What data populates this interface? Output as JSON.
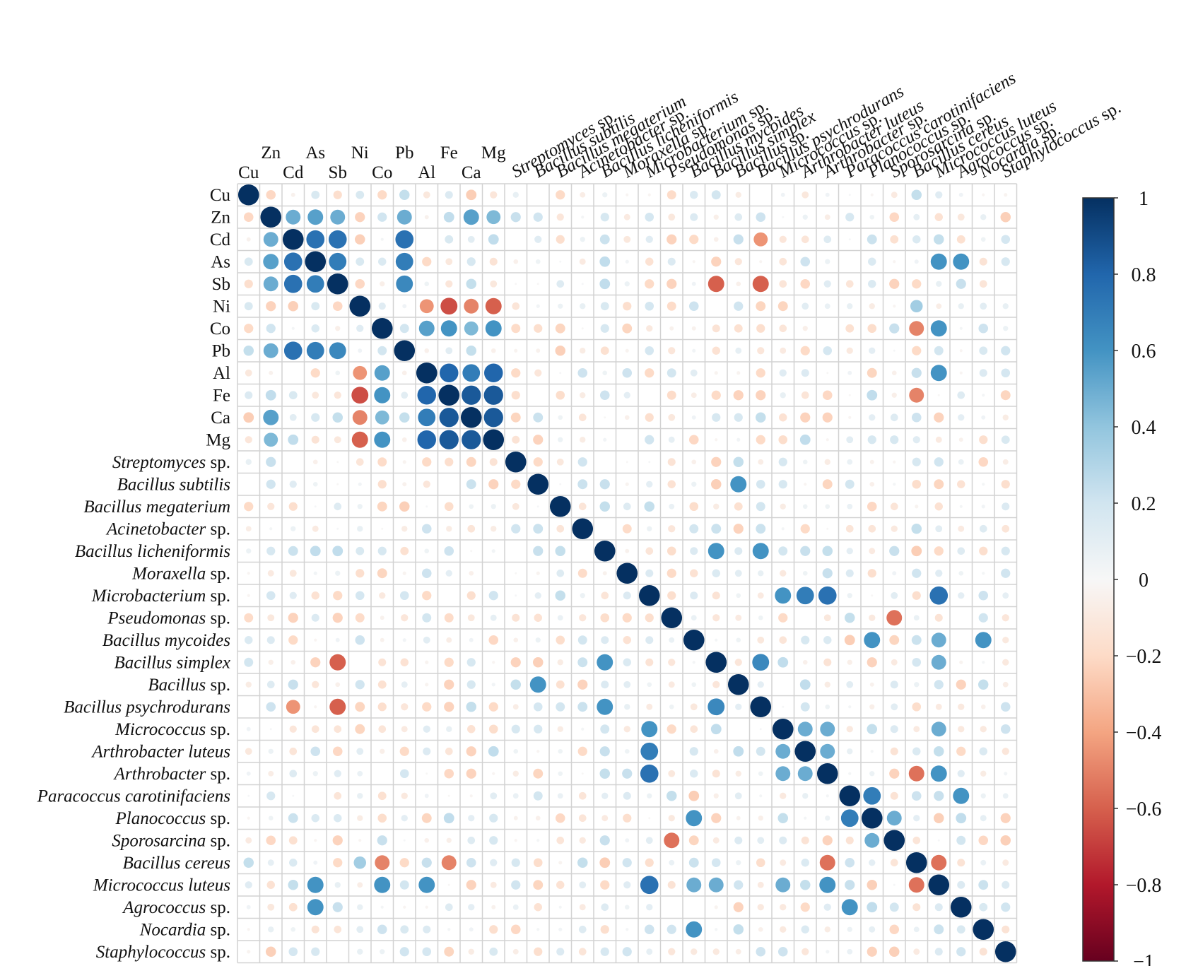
{
  "chart_data": {
    "type": "heatmap",
    "style": "correlation-circles",
    "title": "",
    "variables": [
      {
        "name": "Cu",
        "genus": "Cu",
        "suffix": ""
      },
      {
        "name": "Zn",
        "genus": "Zn",
        "suffix": ""
      },
      {
        "name": "Cd",
        "genus": "Cd",
        "suffix": ""
      },
      {
        "name": "As",
        "genus": "As",
        "suffix": ""
      },
      {
        "name": "Sb",
        "genus": "Sb",
        "suffix": ""
      },
      {
        "name": "Ni",
        "genus": "Ni",
        "suffix": ""
      },
      {
        "name": "Co",
        "genus": "Co",
        "suffix": ""
      },
      {
        "name": "Pb",
        "genus": "Pb",
        "suffix": ""
      },
      {
        "name": "Al",
        "genus": "Al",
        "suffix": ""
      },
      {
        "name": "Fe",
        "genus": "Fe",
        "suffix": ""
      },
      {
        "name": "Ca",
        "genus": "Ca",
        "suffix": ""
      },
      {
        "name": "Mg",
        "genus": "Mg",
        "suffix": ""
      },
      {
        "name": "Streptomyces sp.",
        "genus": "Streptomyces",
        "suffix": " sp."
      },
      {
        "name": "Bacillus subtilis",
        "genus": "Bacillus subtilis",
        "suffix": ""
      },
      {
        "name": "Bacillus megaterium",
        "genus": "Bacillus megaterium",
        "suffix": ""
      },
      {
        "name": "Acinetobacter sp.",
        "genus": "Acinetobacter",
        "suffix": " sp."
      },
      {
        "name": "Bacillus licheniformis",
        "genus": "Bacillus licheniformis",
        "suffix": ""
      },
      {
        "name": "Moraxella sp.",
        "genus": "Moraxella",
        "suffix": " sp."
      },
      {
        "name": "Microbacterium sp.",
        "genus": "Microbacterium",
        "suffix": " sp."
      },
      {
        "name": "Pseudomonas sp.",
        "genus": "Pseudomonas",
        "suffix": " sp."
      },
      {
        "name": "Bacillus mycoides",
        "genus": "Bacillus mycoides",
        "suffix": ""
      },
      {
        "name": "Bacillus simplex",
        "genus": "Bacillus simplex",
        "suffix": ""
      },
      {
        "name": "Bacillus sp.",
        "genus": "Bacillus",
        "suffix": " sp."
      },
      {
        "name": "Bacillus psychrodurans",
        "genus": "Bacillus psychrodurans",
        "suffix": ""
      },
      {
        "name": "Micrococcus sp.",
        "genus": "Micrococcus",
        "suffix": " sp."
      },
      {
        "name": "Arthrobacter luteus",
        "genus": "Arthrobacter luteus",
        "suffix": ""
      },
      {
        "name": "Arthrobacter sp.",
        "genus": "Arthrobacter",
        "suffix": " sp."
      },
      {
        "name": "Paracoccus carotinifaciens",
        "genus": "Paracoccus carotinifaciens",
        "suffix": ""
      },
      {
        "name": "Planococcus sp.",
        "genus": "Planococcus",
        "suffix": " sp."
      },
      {
        "name": "Sporosarcina sp.",
        "genus": "Sporosarcina",
        "suffix": " sp."
      },
      {
        "name": "Bacillus cereus",
        "genus": "Bacillus cereus",
        "suffix": ""
      },
      {
        "name": "Micrococcus luteus",
        "genus": "Micrococcus luteus",
        "suffix": ""
      },
      {
        "name": "Agrococcus sp.",
        "genus": "Agrococcus",
        "suffix": " sp."
      },
      {
        "name": "Nocardia sp.",
        "genus": "Nocardia",
        "suffix": " sp."
      },
      {
        "name": "Staphylococcus sp.",
        "genus": "Staphylococcus",
        "suffix": " sp."
      }
    ],
    "column_labels": [
      "Cu",
      "Zn",
      "Cd",
      "As",
      "Sb",
      "Ni",
      "Co",
      "Pb",
      "Al",
      "Fe",
      "Ca",
      "Mg",
      "Streptomyces sp.",
      "Bacillus subtilis",
      "Bacillus megaterium",
      "Acinetobacter sp.",
      "Bacillus licheniformis",
      "Moraxella sp.",
      "Microbacterium sp.",
      "Pseudomonas sp.",
      "Bacillus mycoides",
      "Bacillus simplex",
      "Bacillus sp.",
      "Bacillus psychrodurans",
      "Micrococcus sp.",
      "Arthrobacter luteus",
      "Arthrobacter sp.",
      "Paracoccus carotinifaciens",
      "Planococcus sp.",
      "Sporosarcina sp.",
      "Bacillus cereus",
      "Micrococcus luteus",
      "Agrococcus sp.",
      "Nocardia sp.",
      "Staphylococcus sp."
    ],
    "strong_correlations": [
      {
        "a": "Zn",
        "b": "Cd",
        "r": 0.5
      },
      {
        "a": "Zn",
        "b": "As",
        "r": 0.55
      },
      {
        "a": "Zn",
        "b": "Sb",
        "r": 0.5
      },
      {
        "a": "Zn",
        "b": "Pb",
        "r": 0.5
      },
      {
        "a": "Zn",
        "b": "Ca",
        "r": 0.55
      },
      {
        "a": "Zn",
        "b": "Mg",
        "r": 0.45
      },
      {
        "a": "Cd",
        "b": "As",
        "r": 0.75
      },
      {
        "a": "Cd",
        "b": "Sb",
        "r": 0.75
      },
      {
        "a": "Cd",
        "b": "Pb",
        "r": 0.75
      },
      {
        "a": "As",
        "b": "Sb",
        "r": 0.7
      },
      {
        "a": "As",
        "b": "Pb",
        "r": 0.7
      },
      {
        "a": "Sb",
        "b": "Pb",
        "r": 0.65
      },
      {
        "a": "Ni",
        "b": "Al",
        "r": -0.45
      },
      {
        "a": "Ni",
        "b": "Fe",
        "r": -0.65
      },
      {
        "a": "Ni",
        "b": "Ca",
        "r": -0.5
      },
      {
        "a": "Ni",
        "b": "Mg",
        "r": -0.6
      },
      {
        "a": "Co",
        "b": "Al",
        "r": 0.55
      },
      {
        "a": "Co",
        "b": "Fe",
        "r": 0.6
      },
      {
        "a": "Co",
        "b": "Ca",
        "r": 0.45
      },
      {
        "a": "Co",
        "b": "Mg",
        "r": 0.6
      },
      {
        "a": "Al",
        "b": "Fe",
        "r": 0.8
      },
      {
        "a": "Al",
        "b": "Ca",
        "r": 0.7
      },
      {
        "a": "Al",
        "b": "Mg",
        "r": 0.8
      },
      {
        "a": "Fe",
        "b": "Ca",
        "r": 0.85
      },
      {
        "a": "Fe",
        "b": "Mg",
        "r": 0.85
      },
      {
        "a": "Ca",
        "b": "Mg",
        "r": 0.85
      },
      {
        "a": "Bacillus subtilis",
        "b": "Bacillus sp.",
        "r": 0.6
      },
      {
        "a": "Bacillus licheniformis",
        "b": "Bacillus simplex",
        "r": 0.6
      },
      {
        "a": "Bacillus licheniformis",
        "b": "Bacillus psychrodurans",
        "r": 0.6
      },
      {
        "a": "Microbacterium sp.",
        "b": "Micrococcus sp.",
        "r": 0.6
      },
      {
        "a": "Microbacterium sp.",
        "b": "Arthrobacter luteus",
        "r": 0.7
      },
      {
        "a": "Microbacterium sp.",
        "b": "Arthrobacter sp.",
        "r": 0.75
      },
      {
        "a": "Microbacterium sp.",
        "b": "Micrococcus luteus",
        "r": 0.75
      },
      {
        "a": "Bacillus mycoides",
        "b": "Planococcus sp.",
        "r": 0.6
      },
      {
        "a": "Bacillus mycoides",
        "b": "Nocardia sp.",
        "r": 0.6
      },
      {
        "a": "Bacillus simplex",
        "b": "Bacillus psychrodurans",
        "r": 0.65
      },
      {
        "a": "Paracoccus carotinifaciens",
        "b": "Planococcus sp.",
        "r": 0.7
      },
      {
        "a": "Paracoccus carotinifaciens",
        "b": "Agrococcus sp.",
        "r": 0.6
      },
      {
        "a": "Cd",
        "b": "Bacillus psychrodurans",
        "r": -0.45
      },
      {
        "a": "Sb",
        "b": "Bacillus simplex",
        "r": -0.6
      },
      {
        "a": "Sb",
        "b": "Bacillus psychrodurans",
        "r": -0.6
      },
      {
        "a": "Fe",
        "b": "Bacillus cereus",
        "r": -0.5
      },
      {
        "a": "Pseudomonas sp.",
        "b": "Sporosarcina sp.",
        "r": -0.55
      },
      {
        "a": "Arthrobacter sp.",
        "b": "Bacillus cereus",
        "r": -0.55
      },
      {
        "a": "Bacillus cereus",
        "b": "Micrococcus luteus",
        "r": -0.55
      },
      {
        "a": "Co",
        "b": "Bacillus cereus",
        "r": -0.5
      },
      {
        "a": "Micrococcus sp.",
        "b": "Arthrobacter luteus",
        "r": 0.5
      },
      {
        "a": "Micrococcus sp.",
        "b": "Arthrobacter sp.",
        "r": 0.5
      },
      {
        "a": "Arthrobacter luteus",
        "b": "Arthrobacter sp.",
        "r": 0.5
      },
      {
        "a": "As",
        "b": "Micrococcus luteus",
        "r": 0.6
      },
      {
        "a": "As",
        "b": "Agrococcus sp.",
        "r": 0.6
      },
      {
        "a": "Co",
        "b": "Micrococcus luteus",
        "r": 0.6
      },
      {
        "a": "Al",
        "b": "Micrococcus luteus",
        "r": 0.6
      },
      {
        "a": "Bacillus mycoides",
        "b": "Micrococcus luteus",
        "r": 0.5
      },
      {
        "a": "Micrococcus sp.",
        "b": "Micrococcus luteus",
        "r": 0.5
      },
      {
        "a": "Arthrobacter sp.",
        "b": "Micrococcus luteus",
        "r": 0.6
      },
      {
        "a": "Planococcus sp.",
        "b": "Sporosarcina sp.",
        "r": 0.5
      },
      {
        "a": "Sb",
        "b": "Bacillus cereus",
        "r": -0.2
      },
      {
        "a": "Ni",
        "b": "Bacillus cereus",
        "r": 0.35
      },
      {
        "a": "Bacillus simplex",
        "b": "Micrococcus luteus",
        "r": 0.5
      }
    ],
    "colorbar": {
      "ticks": [
        "1",
        "0.8",
        "0.6",
        "0.4",
        "0.2",
        "0",
        "−0.2",
        "−0.4",
        "−0.6",
        "−0.8",
        "−1"
      ],
      "range": [
        -1,
        1
      ],
      "colors": {
        "-1": "#67001f",
        "-0.8": "#b2182b",
        "-0.6": "#d6604d",
        "-0.4": "#f4a582",
        "-0.2": "#fddbc7",
        "0": "#f7f7f7",
        "0.2": "#d1e5f0",
        "0.4": "#92c5de",
        "0.6": "#4393c3",
        "0.8": "#2166ac",
        "1": "#053061"
      }
    },
    "xlabel": "",
    "ylabel": ""
  }
}
